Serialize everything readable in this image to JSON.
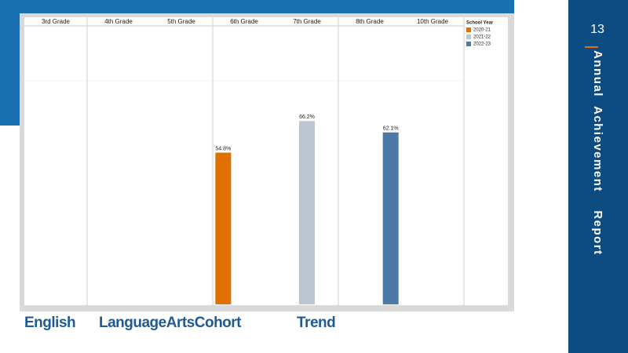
{
  "page_number": "13",
  "sidebar": [
    "Annual",
    "Achievement",
    "Report"
  ],
  "caption": [
    "English",
    "LanguageArtsCohort",
    "Trend"
  ],
  "chart_data": {
    "type": "bar",
    "categories": [
      "3rd Grade",
      "4th Grade",
      "5th Grade",
      "6th Grade",
      "7th Grade",
      "8th Grade",
      "10th Grade"
    ],
    "legend_title": "School Year",
    "series": [
      {
        "name": "2020-21",
        "color": "#e07000",
        "values": [
          null,
          null,
          null,
          54.8,
          null,
          null,
          null
        ],
        "value_labels": [
          null,
          null,
          null,
          "54.8%",
          null,
          null,
          null
        ]
      },
      {
        "name": "2021-22",
        "color": "#bcc6d2",
        "values": [
          null,
          null,
          null,
          null,
          66.2,
          null,
          null
        ],
        "value_labels": [
          null,
          null,
          null,
          null,
          "66.2%",
          null,
          null
        ]
      },
      {
        "name": "2022-23",
        "color": "#4e79a7",
        "values": [
          null,
          null,
          null,
          null,
          null,
          62.1,
          null
        ],
        "value_labels": [
          null,
          null,
          null,
          null,
          null,
          "62.1%",
          null
        ]
      }
    ],
    "ylim": [
      0,
      100
    ]
  }
}
